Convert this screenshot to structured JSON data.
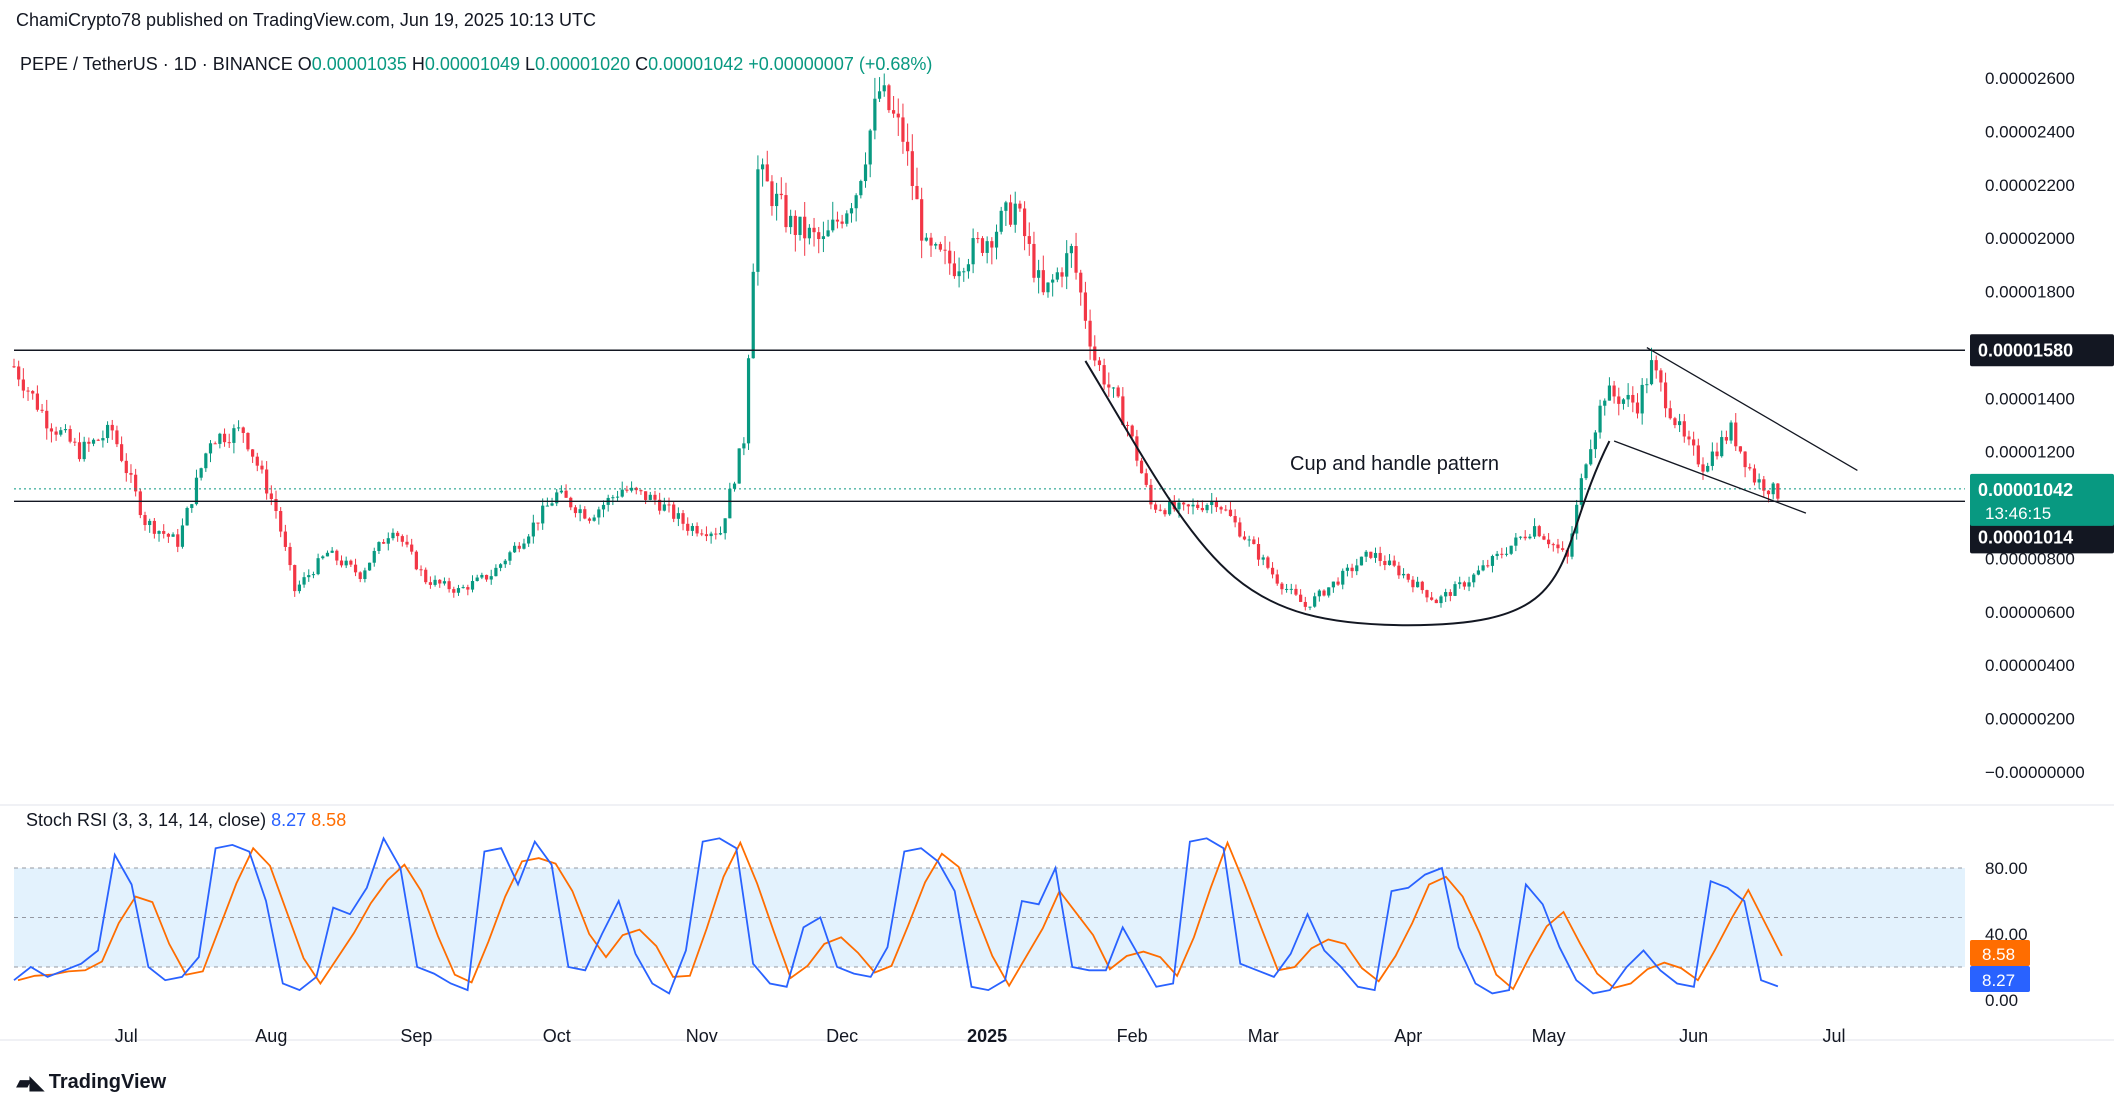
{
  "header": {
    "published": "ChamiCrypto78 published on TradingView.com, Jun 19, 2025 10:13 UTC",
    "symbol": "PEPE / TetherUS · 1D · BINANCE",
    "o_label": "O",
    "o_value": "0.00001035",
    "h_label": "H",
    "h_value": "0.00001049",
    "l_label": "L",
    "l_value": "0.00001020",
    "c_label": "C",
    "c_value": "0.00001042",
    "change": "+0.00000007 (+0.68%)"
  },
  "footer": {
    "brand": "TradingView"
  },
  "colors": {
    "up": "#089981",
    "down": "#f23645",
    "rsi_k": "#2962ff",
    "rsi_d": "#ff6d00",
    "band": "#e3f2fd",
    "current_price": "#089981"
  },
  "annotations": {
    "pattern_label": "Cup and handle pattern"
  },
  "price_tags": {
    "resistance": "0.00001580",
    "current": "0.00001042",
    "countdown": "13:46:15",
    "support": "0.00001014"
  },
  "chart_data": [
    {
      "type": "candlestick",
      "title": "PEPE / TetherUS · 1D · BINANCE",
      "y_ticks": [
        "0.00002600",
        "0.00002400",
        "0.00002200",
        "0.00002000",
        "0.00001800",
        "0.00001400",
        "0.00001200",
        "0.00000800",
        "0.00000600",
        "0.00000400",
        "0.00000200",
        "−0.00000000"
      ],
      "y_tick_values": [
        2.6e-05,
        2.4e-05,
        2.2e-05,
        2e-05,
        1.8e-05,
        1.4e-05,
        1.2e-05,
        8e-06,
        6e-06,
        4e-06,
        2e-06,
        0
      ],
      "ylim": [
        -0.0,
        2.68e-05
      ],
      "x_ticks": [
        "Jul",
        "Aug",
        "Sep",
        "Oct",
        "Nov",
        "Dec",
        "2025",
        "Feb",
        "Mar",
        "Apr",
        "May",
        "Jun",
        "Jul"
      ],
      "x_tick_dates": [
        "2024-07-01",
        "2024-08-01",
        "2024-09-01",
        "2024-10-01",
        "2024-11-01",
        "2024-12-01",
        "2025-01-01",
        "2025-02-01",
        "2025-03-01",
        "2025-04-01",
        "2025-05-01",
        "2025-06-01",
        "2025-07-01"
      ],
      "x_range": [
        "2024-06-07",
        "2025-07-29"
      ],
      "horizontal_lines": [
        1.58e-05,
        1.014e-05
      ],
      "current_price": 1.042e-05,
      "closes": [
        {
          "date": "2024-06-07",
          "close": 1.52e-05
        },
        {
          "date": "2024-06-14",
          "close": 1.32e-05
        },
        {
          "date": "2024-06-21",
          "close": 1.2e-05
        },
        {
          "date": "2024-06-28",
          "close": 1.28e-05
        },
        {
          "date": "2024-07-05",
          "close": 9.4e-06
        },
        {
          "date": "2024-07-12",
          "close": 8.6e-06
        },
        {
          "date": "2024-07-19",
          "close": 1.25e-05
        },
        {
          "date": "2024-07-26",
          "close": 1.28e-05
        },
        {
          "date": "2024-08-02",
          "close": 9.8e-06
        },
        {
          "date": "2024-08-06",
          "close": 6.8e-06
        },
        {
          "date": "2024-08-13",
          "close": 8.2e-06
        },
        {
          "date": "2024-08-20",
          "close": 7.4e-06
        },
        {
          "date": "2024-08-27",
          "close": 9.2e-06
        },
        {
          "date": "2024-09-03",
          "close": 7.2e-06
        },
        {
          "date": "2024-09-10",
          "close": 6.8e-06
        },
        {
          "date": "2024-09-17",
          "close": 7.4e-06
        },
        {
          "date": "2024-09-24",
          "close": 8.8e-06
        },
        {
          "date": "2024-10-01",
          "close": 1.04e-05
        },
        {
          "date": "2024-10-08",
          "close": 9.6e-06
        },
        {
          "date": "2024-10-15",
          "close": 1.06e-05
        },
        {
          "date": "2024-10-22",
          "close": 1.02e-05
        },
        {
          "date": "2024-10-29",
          "close": 9.2e-06
        },
        {
          "date": "2024-11-05",
          "close": 9e-06
        },
        {
          "date": "2024-11-10",
          "close": 1.25e-05
        },
        {
          "date": "2024-11-13",
          "close": 2.25e-05
        },
        {
          "date": "2024-11-20",
          "close": 2.05e-05
        },
        {
          "date": "2024-11-27",
          "close": 1.98e-05
        },
        {
          "date": "2024-12-04",
          "close": 2.18e-05
        },
        {
          "date": "2024-12-09",
          "close": 2.55e-05
        },
        {
          "date": "2024-12-14",
          "close": 2.38e-05
        },
        {
          "date": "2024-12-19",
          "close": 1.95e-05
        },
        {
          "date": "2024-12-25",
          "close": 1.9e-05
        },
        {
          "date": "2025-01-01",
          "close": 2e-05
        },
        {
          "date": "2025-01-07",
          "close": 2.12e-05
        },
        {
          "date": "2025-01-13",
          "close": 1.78e-05
        },
        {
          "date": "2025-01-19",
          "close": 1.95e-05
        },
        {
          "date": "2025-01-24",
          "close": 1.55e-05
        },
        {
          "date": "2025-01-31",
          "close": 1.3e-05
        },
        {
          "date": "2025-02-05",
          "close": 1e-05
        },
        {
          "date": "2025-02-12",
          "close": 9.8e-06
        },
        {
          "date": "2025-02-19",
          "close": 1.02e-05
        },
        {
          "date": "2025-02-26",
          "close": 8.6e-06
        },
        {
          "date": "2025-03-04",
          "close": 7.2e-06
        },
        {
          "date": "2025-03-10",
          "close": 6.2e-06
        },
        {
          "date": "2025-03-17",
          "close": 7.2e-06
        },
        {
          "date": "2025-03-24",
          "close": 8.2e-06
        },
        {
          "date": "2025-03-31",
          "close": 7.4e-06
        },
        {
          "date": "2025-04-07",
          "close": 6.4e-06
        },
        {
          "date": "2025-04-14",
          "close": 7.2e-06
        },
        {
          "date": "2025-04-21",
          "close": 8.2e-06
        },
        {
          "date": "2025-04-28",
          "close": 9.2e-06
        },
        {
          "date": "2025-05-05",
          "close": 8e-06
        },
        {
          "date": "2025-05-09",
          "close": 1.18e-05
        },
        {
          "date": "2025-05-13",
          "close": 1.42e-05
        },
        {
          "date": "2025-05-20",
          "close": 1.38e-05
        },
        {
          "date": "2025-05-23",
          "close": 1.52e-05
        },
        {
          "date": "2025-05-30",
          "close": 1.24e-05
        },
        {
          "date": "2025-06-03",
          "close": 1.15e-05
        },
        {
          "date": "2025-06-09",
          "close": 1.28e-05
        },
        {
          "date": "2025-06-14",
          "close": 1.1e-05
        },
        {
          "date": "2025-06-19",
          "close": 1.042e-05
        }
      ],
      "trendlines": [
        {
          "from": {
            "date": "2025-05-22",
            "price": 1.59e-05
          },
          "to": {
            "date": "2025-07-06",
            "price": 1.13e-05
          }
        },
        {
          "from": {
            "date": "2025-05-15",
            "price": 1.24e-05
          },
          "to": {
            "date": "2025-06-25",
            "price": 9.7e-06
          }
        },
        {
          "from": {
            "date": "2025-01-22",
            "price": 1.54e-05
          },
          "to": {
            "date": "2025-05-14",
            "price": 1.24e-05
          },
          "shape": "cup",
          "bottom": {
            "date": "2025-04-01",
            "price": 5.5e-06
          }
        }
      ]
    },
    {
      "type": "line",
      "title": "Stoch RSI (3, 3, 14, 14, close)",
      "series": [
        {
          "name": "K",
          "last": "8.27"
        },
        {
          "name": "D",
          "last": "8.58"
        }
      ],
      "y_ticks": [
        "80.00",
        "40.00",
        "0.00"
      ],
      "y_tick_values": [
        80,
        40,
        0
      ],
      "band": [
        20,
        80
      ],
      "ylim": [
        0,
        100
      ],
      "k_values": [
        12,
        20,
        14,
        18,
        22,
        30,
        88,
        70,
        20,
        12,
        14,
        26,
        92,
        94,
        90,
        60,
        10,
        6,
        14,
        56,
        52,
        68,
        98,
        80,
        20,
        16,
        10,
        6,
        90,
        92,
        70,
        96,
        82,
        20,
        18,
        40,
        60,
        28,
        10,
        4,
        30,
        96,
        98,
        92,
        22,
        10,
        8,
        44,
        50,
        20,
        16,
        14,
        32,
        90,
        92,
        84,
        66,
        8,
        6,
        12,
        60,
        58,
        80,
        20,
        18,
        18,
        44,
        26,
        8,
        10,
        96,
        98,
        92,
        22,
        18,
        14,
        28,
        52,
        30,
        20,
        8,
        6,
        66,
        68,
        76,
        80,
        32,
        10,
        4,
        6,
        70,
        58,
        32,
        12,
        4,
        6,
        20,
        30,
        18,
        10,
        8,
        72,
        68,
        60,
        12,
        8.27
      ]
    }
  ]
}
